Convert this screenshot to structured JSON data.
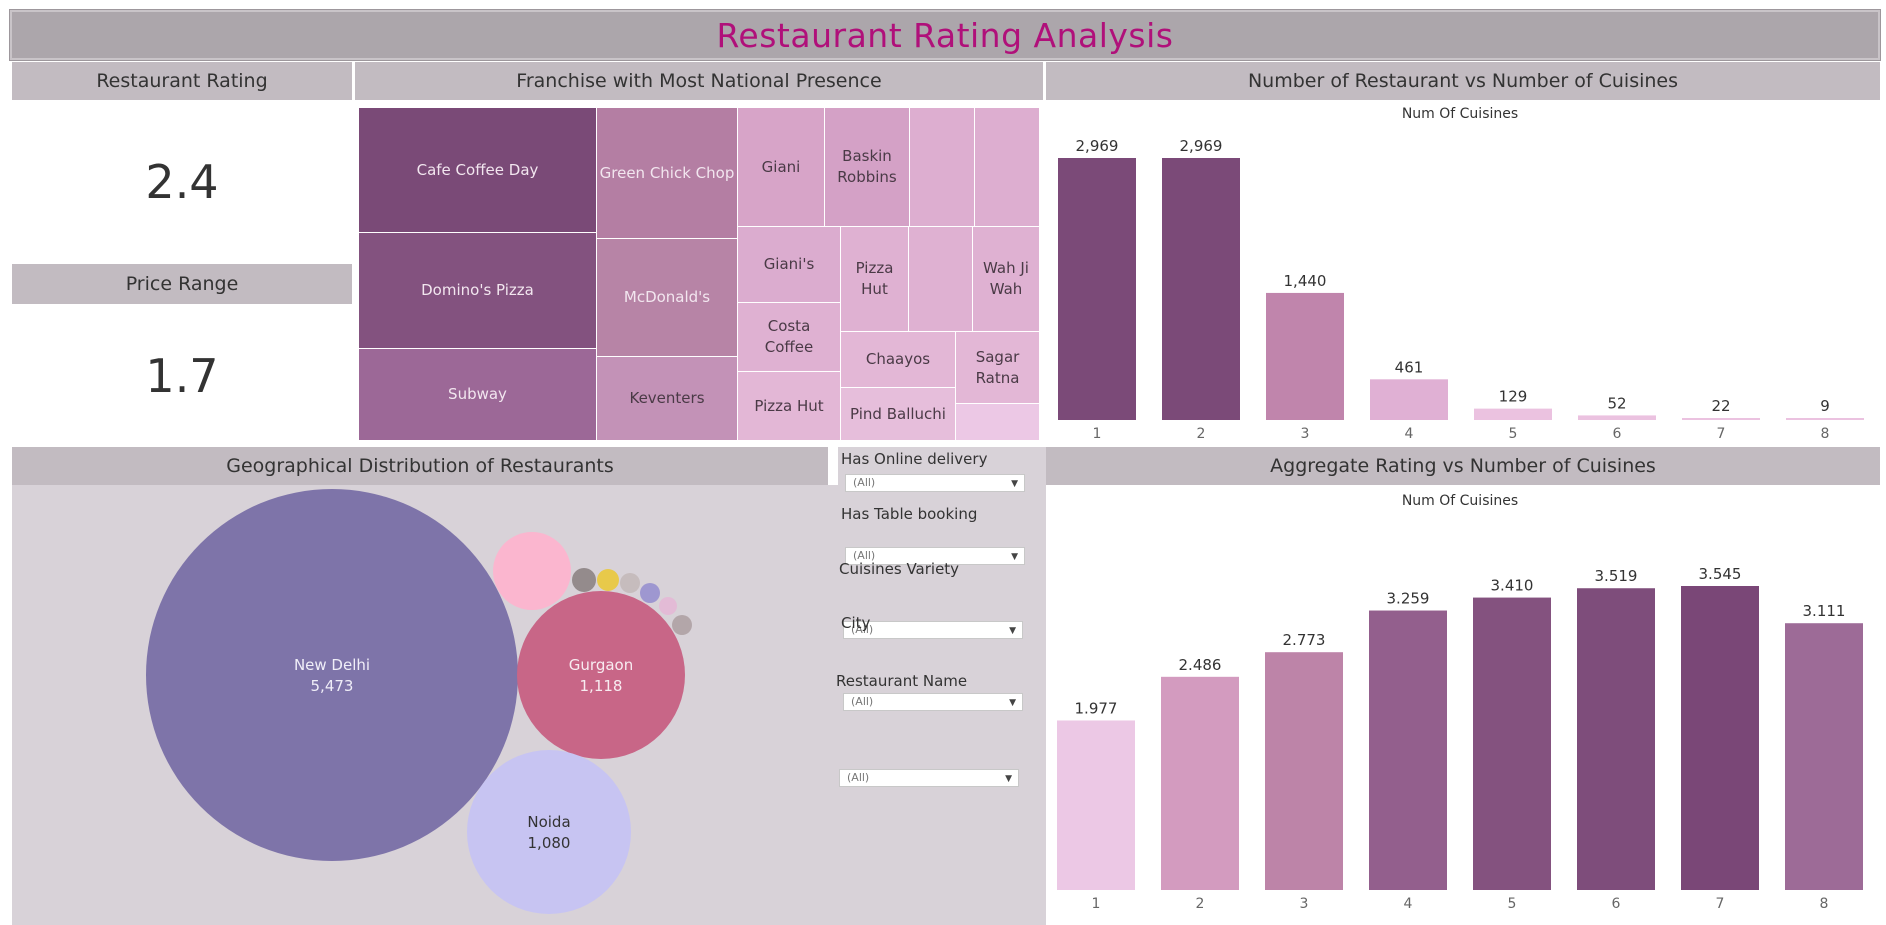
{
  "title": "Restaurant Rating Analysis",
  "kpis": {
    "rating_label": "Restaurant Rating",
    "rating_value": "2.4",
    "price_label": "Price Range",
    "price_value": "1.7"
  },
  "treemap": {
    "header": "Franchise with Most National Presence",
    "cells": [
      "Cafe Coffee Day",
      "Domino's Pizza",
      "Subway",
      "Green Chick Chop",
      "McDonald's",
      "Keventers",
      "Giani",
      "Baskin Robbins",
      "Giani's",
      "Pizza Hut",
      "Wah Ji Wah",
      "Costa Coffee",
      "Chaayos",
      "Sagar Ratna",
      "Pizza Hut",
      "Pind Balluchi"
    ]
  },
  "geo": {
    "header": "Geographical Distribution of Restaurants",
    "bubbles": [
      {
        "city": "New Delhi",
        "count": "5,473"
      },
      {
        "city": "Gurgaon",
        "count": "1,118"
      },
      {
        "city": "Noida",
        "count": "1,080"
      }
    ]
  },
  "filters": [
    {
      "label": "Has Online delivery",
      "value": "(All)"
    },
    {
      "label": "Has Table booking",
      "value": "(All)"
    },
    {
      "label": "Cuisines Variety",
      "value": "(All)"
    },
    {
      "label": "City",
      "value": "(All)"
    },
    {
      "label": "Restaurant Name",
      "value": "(All)"
    }
  ],
  "chart_data": [
    {
      "type": "bar",
      "title": "Number of Restaurant vs Number of Cuisines",
      "xlabel": "Num Of Cuisines",
      "ylabel": "",
      "categories": [
        "1",
        "2",
        "3",
        "4",
        "5",
        "6",
        "7",
        "8"
      ],
      "values": [
        2969,
        2969,
        1440,
        461,
        129,
        52,
        22,
        9
      ],
      "value_labels": [
        "2,969",
        "2,969",
        "1,440",
        "461",
        "129",
        "52",
        "22",
        "9"
      ],
      "ylim": [
        0,
        2969
      ],
      "colors": [
        "#7b4a78",
        "#7b4a78",
        "#c085ac",
        "#e0b0d4",
        "#ebc2e0",
        "#ebc2e0",
        "#ebc2e0",
        "#ebc2e0"
      ]
    },
    {
      "type": "bar",
      "title": "Aggregate Rating vs Number of Cuisines",
      "xlabel": "Num Of Cuisines",
      "ylabel": "",
      "categories": [
        "1",
        "2",
        "3",
        "4",
        "5",
        "6",
        "7",
        "8"
      ],
      "values": [
        1.977,
        2.486,
        2.773,
        3.259,
        3.41,
        3.519,
        3.545,
        3.111
      ],
      "value_labels": [
        "1.977",
        "2.486",
        "2.773",
        "3.259",
        "3.410",
        "3.519",
        "3.545",
        "3.111"
      ],
      "ylim": [
        0,
        3.545
      ],
      "colors": [
        "#ecc8e5",
        "#d39bbf",
        "#bd84a8",
        "#935f8d",
        "#84527f",
        "#7e4d7b",
        "#7a4777",
        "#9d6b97"
      ]
    }
  ]
}
